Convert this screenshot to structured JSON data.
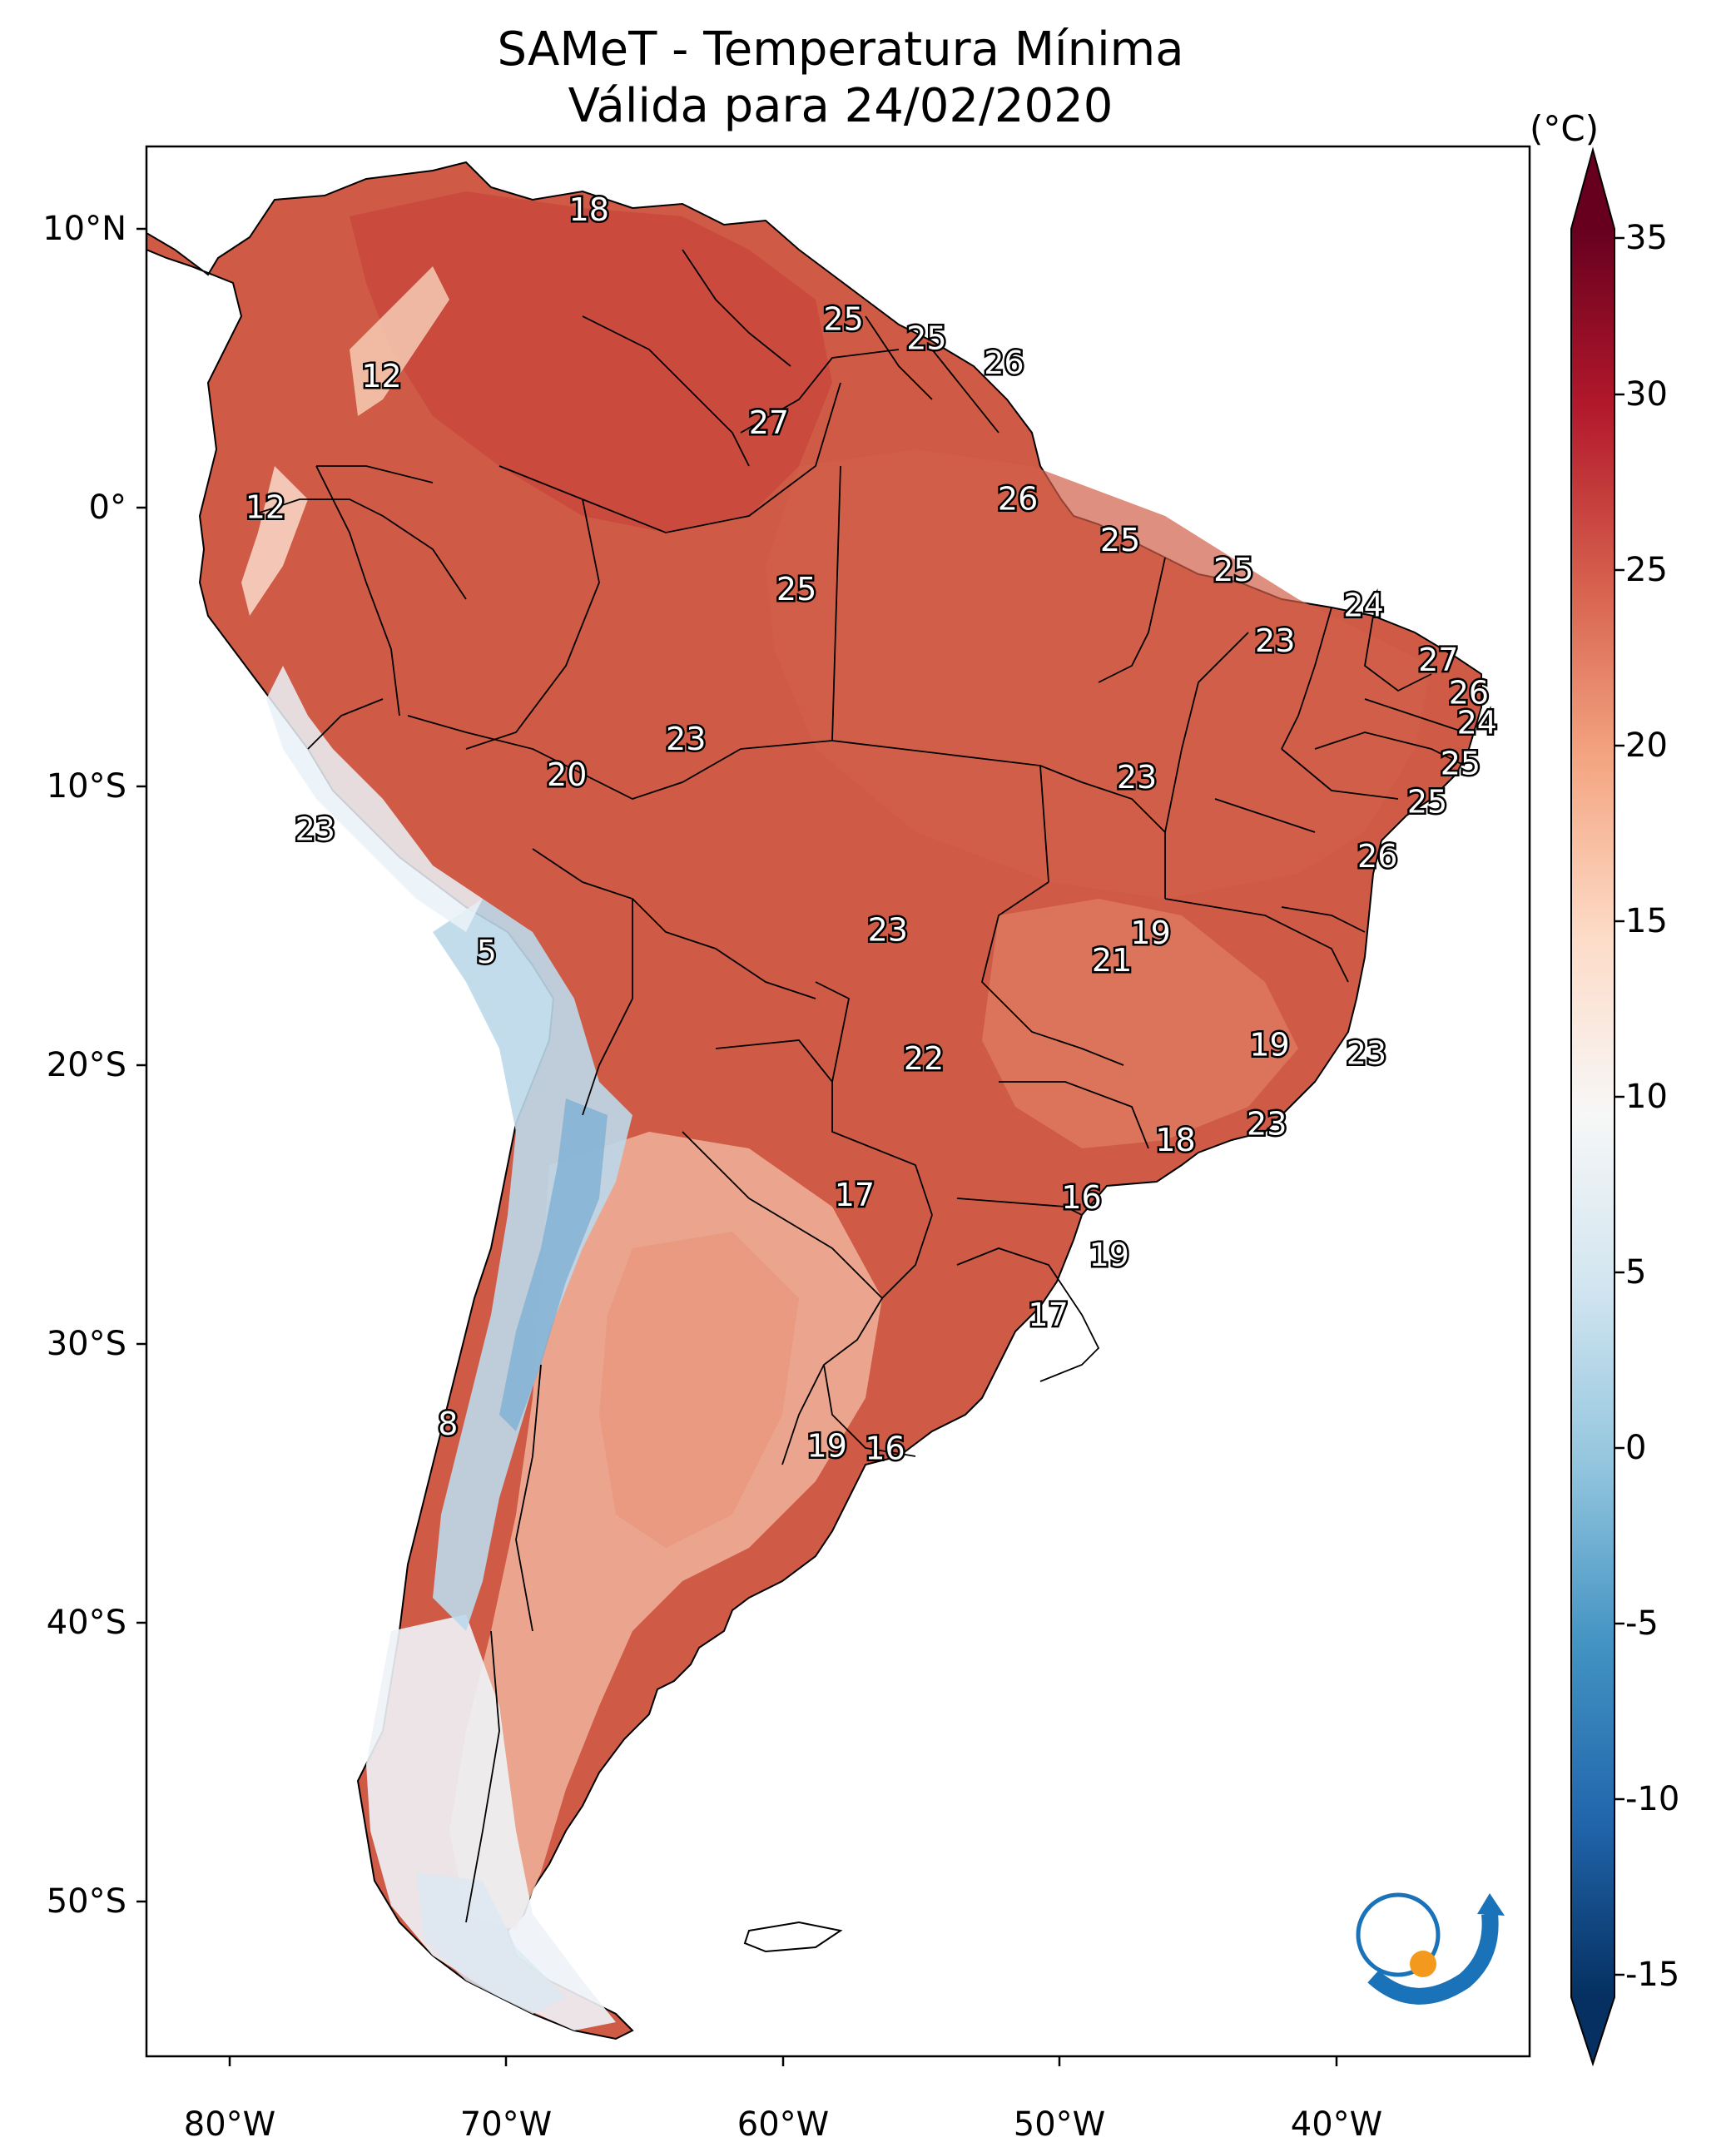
{
  "title": "SAMeT - Temperatura Mínima",
  "subtitle": "Válida para 24/02/2020",
  "colorbar": {
    "unit": "(°C)",
    "min": -17,
    "max": 38,
    "ticks": [
      "35",
      "30",
      "25",
      "20",
      "15",
      "10",
      "5",
      "0",
      "-5",
      "-10",
      "-15"
    ],
    "colors": [
      "#053061",
      "#2166ac",
      "#4393c3",
      "#92c5de",
      "#d1e5f0",
      "#f7f7f7",
      "#fddbc7",
      "#f4a582",
      "#d6604d",
      "#b2182b",
      "#67001f"
    ]
  },
  "axes": {
    "lat_labels": [
      "10°N",
      "0°",
      "10°S",
      "20°S",
      "30°S",
      "40°S",
      "50°S"
    ],
    "lon_labels": [
      "80°W",
      "70°W",
      "60°W",
      "50°W",
      "40°W"
    ]
  },
  "chart_data": {
    "type": "heatmap",
    "title": "SAMeT - Temperatura Mínima",
    "subtitle": "Válida para 24/02/2020",
    "xlim": [
      -83,
      -33
    ],
    "ylim": [
      -57,
      13
    ],
    "colorbar_range": [
      -17,
      38
    ],
    "value_labels": [
      {
        "lon": -67.0,
        "lat": 10.6,
        "value": "18"
      },
      {
        "lon": -57.8,
        "lat": 6.6,
        "value": "25"
      },
      {
        "lon": -54.8,
        "lat": 5.9,
        "value": "25"
      },
      {
        "lon": -52.0,
        "lat": 5.0,
        "value": "26"
      },
      {
        "lon": -74.5,
        "lat": 4.5,
        "value": "12"
      },
      {
        "lon": -60.5,
        "lat": 2.8,
        "value": "27"
      },
      {
        "lon": -51.5,
        "lat": 0.0,
        "value": "26"
      },
      {
        "lon": -78.7,
        "lat": -0.3,
        "value": "12"
      },
      {
        "lon": -47.8,
        "lat": -1.5,
        "value": "25"
      },
      {
        "lon": -43.7,
        "lat": -2.6,
        "value": "25"
      },
      {
        "lon": -59.5,
        "lat": -3.3,
        "value": "25"
      },
      {
        "lon": -39.0,
        "lat": -3.9,
        "value": "24"
      },
      {
        "lon": -42.2,
        "lat": -5.2,
        "value": "23"
      },
      {
        "lon": -36.3,
        "lat": -5.9,
        "value": "27"
      },
      {
        "lon": -35.2,
        "lat": -7.1,
        "value": "26"
      },
      {
        "lon": -34.9,
        "lat": -8.2,
        "value": "24"
      },
      {
        "lon": -63.5,
        "lat": -8.8,
        "value": "23"
      },
      {
        "lon": -35.5,
        "lat": -9.7,
        "value": "25"
      },
      {
        "lon": -67.8,
        "lat": -10.1,
        "value": "20"
      },
      {
        "lon": -47.2,
        "lat": -10.2,
        "value": "23"
      },
      {
        "lon": -36.7,
        "lat": -11.1,
        "value": "25"
      },
      {
        "lon": -76.9,
        "lat": -12.1,
        "value": "23"
      },
      {
        "lon": -38.5,
        "lat": -13.1,
        "value": "26"
      },
      {
        "lon": -56.2,
        "lat": -15.8,
        "value": "23"
      },
      {
        "lon": -46.7,
        "lat": -15.9,
        "value": "19"
      },
      {
        "lon": -48.1,
        "lat": -16.9,
        "value": "21"
      },
      {
        "lon": -70.7,
        "lat": -16.6,
        "value": "5"
      },
      {
        "lon": -42.4,
        "lat": -20.0,
        "value": "19"
      },
      {
        "lon": -38.9,
        "lat": -20.3,
        "value": "23"
      },
      {
        "lon": -54.9,
        "lat": -20.5,
        "value": "22"
      },
      {
        "lon": -42.5,
        "lat": -22.9,
        "value": "23"
      },
      {
        "lon": -45.8,
        "lat": -23.5,
        "value": "18"
      },
      {
        "lon": -57.4,
        "lat": -25.5,
        "value": "17"
      },
      {
        "lon": -49.2,
        "lat": -25.6,
        "value": "16"
      },
      {
        "lon": -48.2,
        "lat": -27.7,
        "value": "19"
      },
      {
        "lon": -50.4,
        "lat": -29.9,
        "value": "17"
      },
      {
        "lon": -72.1,
        "lat": -33.9,
        "value": "8"
      },
      {
        "lon": -58.4,
        "lat": -34.7,
        "value": "19"
      },
      {
        "lon": -56.3,
        "lat": -34.8,
        "value": "16"
      }
    ]
  }
}
